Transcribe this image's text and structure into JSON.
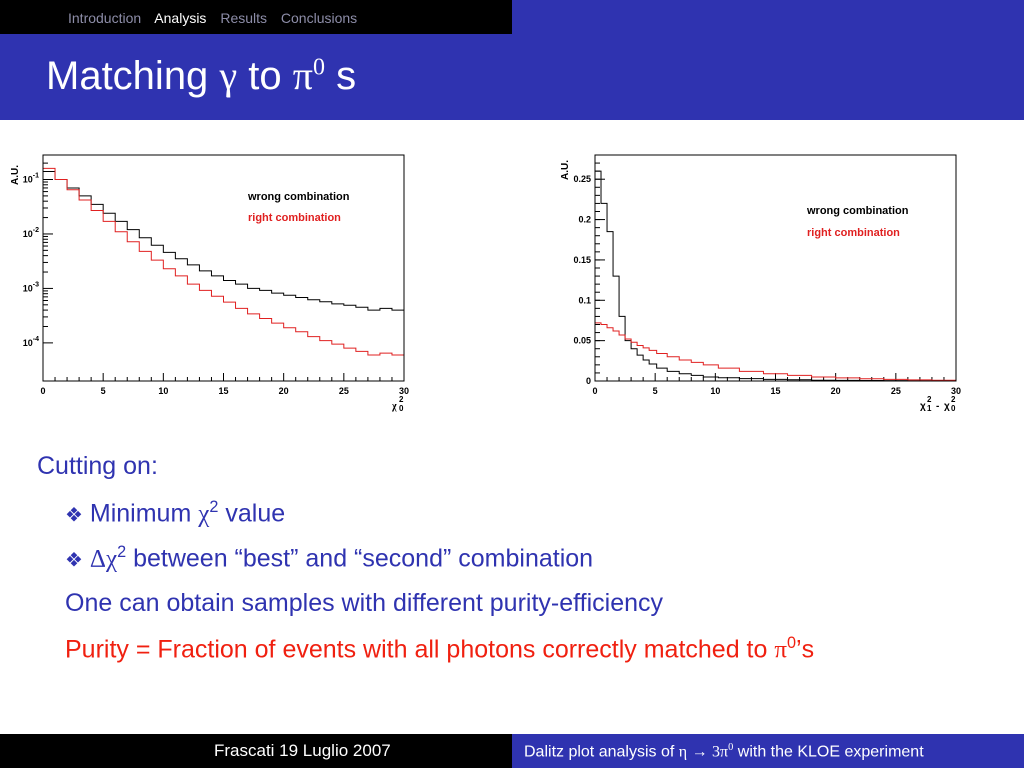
{
  "nav": {
    "items": [
      "Introduction",
      "Analysis",
      "Results",
      "Conclusions"
    ],
    "active": "Analysis"
  },
  "title": {
    "text": "Matching",
    "gamma": "γ",
    "to": "to",
    "pi": "π",
    "sup": "0",
    "suffix": "s"
  },
  "plots": [
    {
      "type": "line",
      "ylabel": "A.U.",
      "xlabel": "χ0²",
      "xlabel_main": "χ",
      "xlabel_sup": "2",
      "xlabel_sub": "0",
      "y_scale": "log",
      "xlim": [
        0,
        30
      ],
      "ylim_log10": [
        -4.7,
        -0.55
      ],
      "x_ticks": [
        "0",
        "5",
        "10",
        "15",
        "20",
        "25",
        "30"
      ],
      "y_ticks": [
        {
          "base": "10",
          "exp": "-1"
        },
        {
          "base": "10",
          "exp": "-2"
        },
        {
          "base": "10",
          "exp": "-3"
        },
        {
          "base": "10",
          "exp": "-4"
        }
      ],
      "legend": [
        "wrong combination",
        "right combination"
      ],
      "legend_placement": "top-right",
      "series": [
        {
          "name": "wrong combination",
          "color": "#000000",
          "x": [
            0.5,
            1.5,
            2.5,
            3.5,
            4.5,
            5.5,
            6.5,
            7.5,
            8.5,
            9.5,
            10.5,
            11.5,
            12.5,
            13.5,
            14.5,
            15.5,
            16.5,
            17.5,
            18.5,
            19.5,
            20.5,
            21.5,
            22.5,
            23.5,
            24.5,
            25.5,
            26.5,
            27.5,
            28.5,
            29.5
          ],
          "values": [
            0.14,
            0.1,
            0.07,
            0.05,
            0.035,
            0.024,
            0.017,
            0.012,
            0.0085,
            0.0062,
            0.0046,
            0.0035,
            0.0027,
            0.0021,
            0.0017,
            0.0014,
            0.0012,
            0.001,
            0.00092,
            0.00082,
            0.00075,
            0.00068,
            0.00062,
            0.00057,
            0.00052,
            0.00049,
            0.00045,
            0.0004,
            0.00043,
            0.0004
          ]
        },
        {
          "name": "right combination",
          "color": "#e02020",
          "x": [
            0.5,
            1.5,
            2.5,
            3.5,
            4.5,
            5.5,
            6.5,
            7.5,
            8.5,
            9.5,
            10.5,
            11.5,
            12.5,
            13.5,
            14.5,
            15.5,
            16.5,
            17.5,
            18.5,
            19.5,
            20.5,
            21.5,
            22.5,
            23.5,
            24.5,
            25.5,
            26.5,
            27.5,
            28.5,
            29.5
          ],
          "values": [
            0.16,
            0.1,
            0.065,
            0.042,
            0.027,
            0.017,
            0.011,
            0.0072,
            0.0048,
            0.0033,
            0.0023,
            0.0017,
            0.0012,
            0.00092,
            0.00072,
            0.00056,
            0.00043,
            0.00034,
            0.00028,
            0.00023,
            0.00019,
            0.00016,
            0.00013,
            0.00011,
            9.5e-05,
            8e-05,
            7e-05,
            6e-05,
            6.5e-05,
            6e-05
          ]
        }
      ]
    },
    {
      "type": "line",
      "ylabel": "A.U.",
      "xlabel": "χ1² - χ0²",
      "xlabel_main": "χ",
      "xlabel_sup": "2",
      "xlabel_sub1": "1",
      "xlabel_dash": "-",
      "xlabel_sub0": "0",
      "y_scale": "linear",
      "xlim": [
        0,
        30
      ],
      "ylim": [
        0,
        0.28
      ],
      "x_ticks": [
        "0",
        "5",
        "10",
        "15",
        "20",
        "25",
        "30"
      ],
      "y_ticks": [
        "0.25",
        "0.2",
        "0.15",
        "0.1",
        "0.05",
        "0"
      ],
      "legend": [
        "wrong combination",
        "right combination"
      ],
      "legend_placement": "top-right",
      "series": [
        {
          "name": "wrong combination",
          "color": "#000000",
          "x": [
            0.25,
            0.75,
            1.25,
            1.75,
            2.25,
            2.75,
            3.25,
            3.75,
            4.25,
            4.75,
            5.5,
            6.5,
            7.5,
            8.5,
            9.5,
            11,
            13,
            15,
            17,
            19,
            21,
            23,
            25,
            27,
            29
          ],
          "values": [
            0.26,
            0.22,
            0.185,
            0.13,
            0.08,
            0.05,
            0.04,
            0.032,
            0.026,
            0.021,
            0.016,
            0.012,
            0.009,
            0.007,
            0.005,
            0.004,
            0.003,
            0.002,
            0.0015,
            0.001,
            0.0008,
            0.0006,
            0.0004,
            0.0003,
            0.0002
          ]
        },
        {
          "name": "right combination",
          "color": "#e02020",
          "x": [
            0.25,
            0.75,
            1.25,
            1.75,
            2.25,
            2.75,
            3.25,
            3.75,
            4.25,
            4.75,
            5.5,
            6.5,
            7.5,
            8.5,
            9.5,
            11,
            13,
            15,
            17,
            19,
            21,
            23,
            25,
            27,
            29
          ],
          "values": [
            0.072,
            0.07,
            0.066,
            0.062,
            0.057,
            0.052,
            0.048,
            0.044,
            0.041,
            0.038,
            0.034,
            0.03,
            0.026,
            0.023,
            0.02,
            0.016,
            0.012,
            0.009,
            0.007,
            0.005,
            0.0038,
            0.0028,
            0.002,
            0.0014,
            0.001
          ]
        }
      ]
    }
  ],
  "bullets": {
    "heading": "Cutting on:",
    "item1": {
      "marker": "❖",
      "text_before": "Minimum",
      "chi": "χ",
      "sup": "2",
      "text_after": "value"
    },
    "item2": {
      "marker": "❖",
      "delta": "Δχ",
      "sup": "2",
      "text_after": "between “best” and “second” combination"
    },
    "line3": "One can obtain samples with different purity-efficiency",
    "line4": {
      "text": "Purity = Fraction of events with all photons correctly matched to",
      "pi": "π",
      "sup": "0",
      "suffix": "’s"
    }
  },
  "footer": {
    "date": "Frascati 19 Luglio 2007",
    "talk_prefix": "Dalitz plot analysis of",
    "eta": "η",
    "arrow": "→",
    "three_pi": "3π",
    "sup": "0",
    "talk_suffix": "with the KLOE experiment"
  }
}
